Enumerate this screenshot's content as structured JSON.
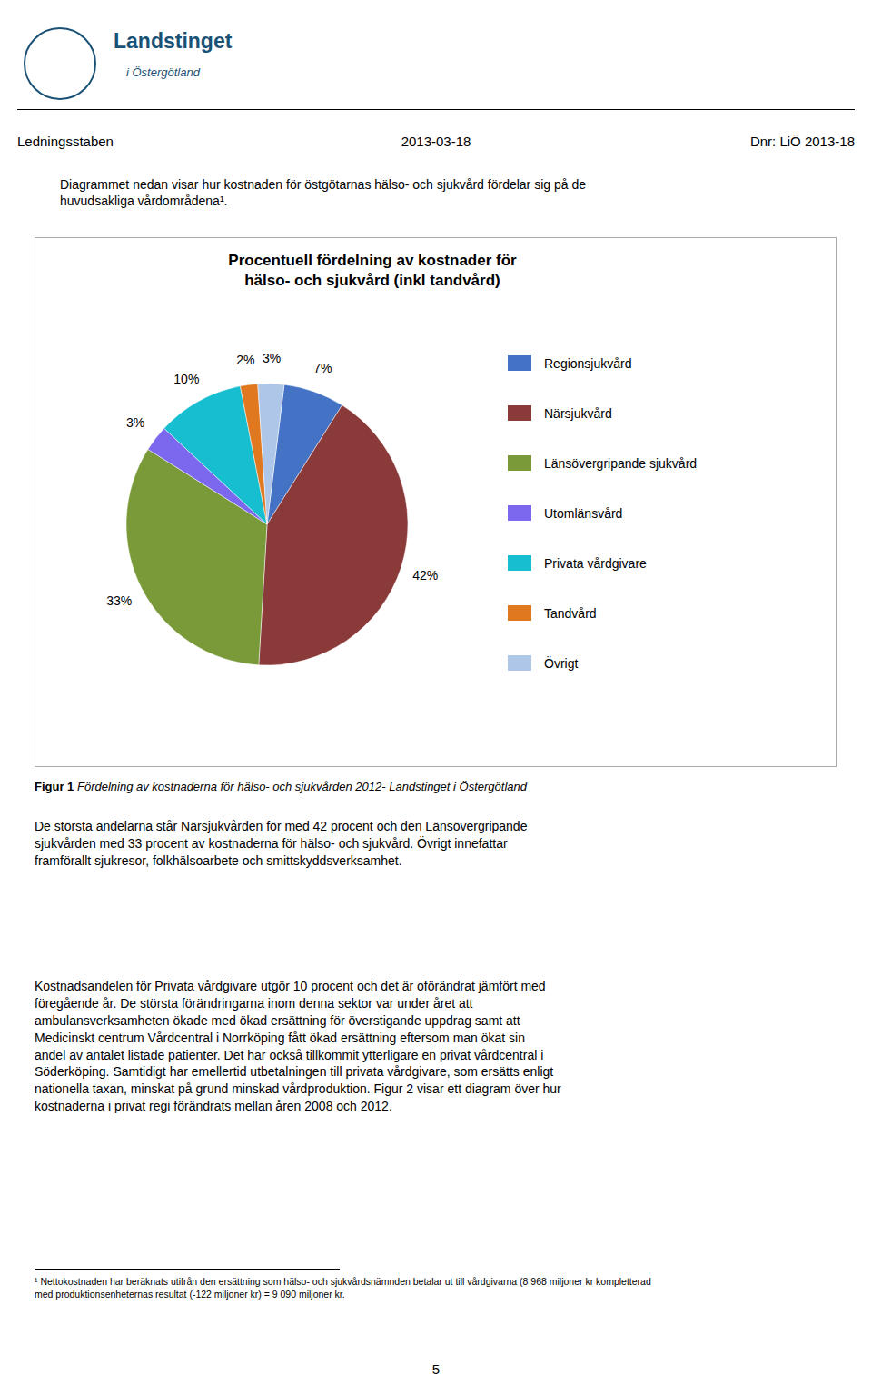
{
  "chart_data": {
    "type": "pie",
    "title": "Procentuell fördelning av kostnader för\nhälso- och sjukvård (inkl tandvård)",
    "categories": [
      "Regionsjukvård",
      "Närsjukvård",
      "Länsövergripande sjukvård",
      "Utomlänsvård",
      "Privata vårdgivare",
      "Tandvård",
      "Övrigt"
    ],
    "values": [
      7,
      42,
      33,
      3,
      10,
      2,
      3
    ],
    "value_labels": [
      "7%",
      "42%",
      "33%",
      "3%",
      "10%",
      "2%",
      "3%"
    ],
    "data_labels": true,
    "colors": [
      "#4472C4",
      "#8B3A3A",
      "#7A9A3A",
      "#7B68EE",
      "#17BECF",
      "#E07820",
      "#AEC6E8"
    ],
    "legend": "right",
    "annotations": [
      "Landstinget",
      "i Östergötland",
      "Ledningsstaben",
      "2013-03-18",
      "Dnr: LiÖ 2013-18",
      "Diagrammet nedan visar hur kostnaden för östgötarnas hälso- och sjukvård fördelar sig på de\nhuvudsakliga vårdområdena¹.",
      "Figur 1",
      " Fördelning av kostnaderna för hälso- och sjukvården 2012- Landstinget i Östergötland",
      "De största andelarna står Närsjukvården för med 42 procent och den Länsövergripande\nsjukvården med 33 procent av kostnaderna för hälso- och sjukvård. Övrigt innefattar\nframförallt sjukresor, folkhälsoarbete och smittskyddsverksamhet.",
      "Kostnadsandelen för Privata vårdgivare utgör 10 procent och det är oförändrat jämfört med\nföregående år. De största förändringarna inom denna sektor var under året att\nambulansverksamheten ökade med ökad ersättning för överstigande uppdrag samt att\nMedicinskt centrum Vårdcentral i Norrköping fått ökad ersättning eftersom man ökat sin\nandel av antalet listade patienter. Det har också tillkommit ytterligare en privat vårdcentral i\nSöderköping. Samtidigt har emellertid utbetalningen till privata vårdgivare, som ersätts enligt\nnationella taxan, minskat på grund minskad vårdproduktion. Figur 2 visar ett diagram över hur\nkostnaderna i privat regi förändrats mellan åren 2008 och 2012.",
      "¹ Nettokostnaden har beräknats utifrån den ersättning som hälso- och sjukvårdsnämnden betalar ut till vårdgivarna (8 968 miljoner kr kompletterad\nmed produktionsenheternas resultat (-122 miljoner kr) = 9 090 miljoner kr.",
      "5"
    ]
  }
}
